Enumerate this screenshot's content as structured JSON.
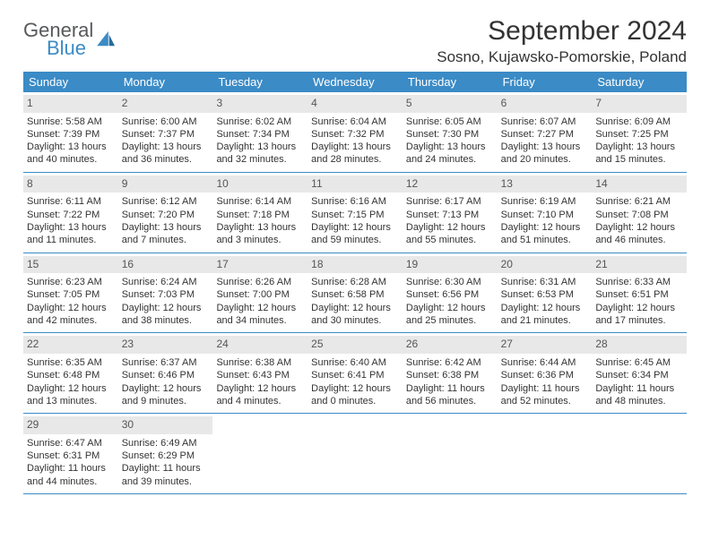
{
  "logo": {
    "general": "General",
    "blue": "Blue"
  },
  "title": "September 2024",
  "location": "Sosno, Kujawsko-Pomorskie, Poland",
  "colors": {
    "header_bg": "#3b8bc6",
    "daynum_bg": "#e8e8e8",
    "logo_gray": "#58595b",
    "logo_blue": "#3b8bc6"
  },
  "day_headers": [
    "Sunday",
    "Monday",
    "Tuesday",
    "Wednesday",
    "Thursday",
    "Friday",
    "Saturday"
  ],
  "weeks": [
    [
      {
        "n": "1",
        "sr": "Sunrise: 5:58 AM",
        "ss": "Sunset: 7:39 PM",
        "d1": "Daylight: 13 hours",
        "d2": "and 40 minutes."
      },
      {
        "n": "2",
        "sr": "Sunrise: 6:00 AM",
        "ss": "Sunset: 7:37 PM",
        "d1": "Daylight: 13 hours",
        "d2": "and 36 minutes."
      },
      {
        "n": "3",
        "sr": "Sunrise: 6:02 AM",
        "ss": "Sunset: 7:34 PM",
        "d1": "Daylight: 13 hours",
        "d2": "and 32 minutes."
      },
      {
        "n": "4",
        "sr": "Sunrise: 6:04 AM",
        "ss": "Sunset: 7:32 PM",
        "d1": "Daylight: 13 hours",
        "d2": "and 28 minutes."
      },
      {
        "n": "5",
        "sr": "Sunrise: 6:05 AM",
        "ss": "Sunset: 7:30 PM",
        "d1": "Daylight: 13 hours",
        "d2": "and 24 minutes."
      },
      {
        "n": "6",
        "sr": "Sunrise: 6:07 AM",
        "ss": "Sunset: 7:27 PM",
        "d1": "Daylight: 13 hours",
        "d2": "and 20 minutes."
      },
      {
        "n": "7",
        "sr": "Sunrise: 6:09 AM",
        "ss": "Sunset: 7:25 PM",
        "d1": "Daylight: 13 hours",
        "d2": "and 15 minutes."
      }
    ],
    [
      {
        "n": "8",
        "sr": "Sunrise: 6:11 AM",
        "ss": "Sunset: 7:22 PM",
        "d1": "Daylight: 13 hours",
        "d2": "and 11 minutes."
      },
      {
        "n": "9",
        "sr": "Sunrise: 6:12 AM",
        "ss": "Sunset: 7:20 PM",
        "d1": "Daylight: 13 hours",
        "d2": "and 7 minutes."
      },
      {
        "n": "10",
        "sr": "Sunrise: 6:14 AM",
        "ss": "Sunset: 7:18 PM",
        "d1": "Daylight: 13 hours",
        "d2": "and 3 minutes."
      },
      {
        "n": "11",
        "sr": "Sunrise: 6:16 AM",
        "ss": "Sunset: 7:15 PM",
        "d1": "Daylight: 12 hours",
        "d2": "and 59 minutes."
      },
      {
        "n": "12",
        "sr": "Sunrise: 6:17 AM",
        "ss": "Sunset: 7:13 PM",
        "d1": "Daylight: 12 hours",
        "d2": "and 55 minutes."
      },
      {
        "n": "13",
        "sr": "Sunrise: 6:19 AM",
        "ss": "Sunset: 7:10 PM",
        "d1": "Daylight: 12 hours",
        "d2": "and 51 minutes."
      },
      {
        "n": "14",
        "sr": "Sunrise: 6:21 AM",
        "ss": "Sunset: 7:08 PM",
        "d1": "Daylight: 12 hours",
        "d2": "and 46 minutes."
      }
    ],
    [
      {
        "n": "15",
        "sr": "Sunrise: 6:23 AM",
        "ss": "Sunset: 7:05 PM",
        "d1": "Daylight: 12 hours",
        "d2": "and 42 minutes."
      },
      {
        "n": "16",
        "sr": "Sunrise: 6:24 AM",
        "ss": "Sunset: 7:03 PM",
        "d1": "Daylight: 12 hours",
        "d2": "and 38 minutes."
      },
      {
        "n": "17",
        "sr": "Sunrise: 6:26 AM",
        "ss": "Sunset: 7:00 PM",
        "d1": "Daylight: 12 hours",
        "d2": "and 34 minutes."
      },
      {
        "n": "18",
        "sr": "Sunrise: 6:28 AM",
        "ss": "Sunset: 6:58 PM",
        "d1": "Daylight: 12 hours",
        "d2": "and 30 minutes."
      },
      {
        "n": "19",
        "sr": "Sunrise: 6:30 AM",
        "ss": "Sunset: 6:56 PM",
        "d1": "Daylight: 12 hours",
        "d2": "and 25 minutes."
      },
      {
        "n": "20",
        "sr": "Sunrise: 6:31 AM",
        "ss": "Sunset: 6:53 PM",
        "d1": "Daylight: 12 hours",
        "d2": "and 21 minutes."
      },
      {
        "n": "21",
        "sr": "Sunrise: 6:33 AM",
        "ss": "Sunset: 6:51 PM",
        "d1": "Daylight: 12 hours",
        "d2": "and 17 minutes."
      }
    ],
    [
      {
        "n": "22",
        "sr": "Sunrise: 6:35 AM",
        "ss": "Sunset: 6:48 PM",
        "d1": "Daylight: 12 hours",
        "d2": "and 13 minutes."
      },
      {
        "n": "23",
        "sr": "Sunrise: 6:37 AM",
        "ss": "Sunset: 6:46 PM",
        "d1": "Daylight: 12 hours",
        "d2": "and 9 minutes."
      },
      {
        "n": "24",
        "sr": "Sunrise: 6:38 AM",
        "ss": "Sunset: 6:43 PM",
        "d1": "Daylight: 12 hours",
        "d2": "and 4 minutes."
      },
      {
        "n": "25",
        "sr": "Sunrise: 6:40 AM",
        "ss": "Sunset: 6:41 PM",
        "d1": "Daylight: 12 hours",
        "d2": "and 0 minutes."
      },
      {
        "n": "26",
        "sr": "Sunrise: 6:42 AM",
        "ss": "Sunset: 6:38 PM",
        "d1": "Daylight: 11 hours",
        "d2": "and 56 minutes."
      },
      {
        "n": "27",
        "sr": "Sunrise: 6:44 AM",
        "ss": "Sunset: 6:36 PM",
        "d1": "Daylight: 11 hours",
        "d2": "and 52 minutes."
      },
      {
        "n": "28",
        "sr": "Sunrise: 6:45 AM",
        "ss": "Sunset: 6:34 PM",
        "d1": "Daylight: 11 hours",
        "d2": "and 48 minutes."
      }
    ],
    [
      {
        "n": "29",
        "sr": "Sunrise: 6:47 AM",
        "ss": "Sunset: 6:31 PM",
        "d1": "Daylight: 11 hours",
        "d2": "and 44 minutes."
      },
      {
        "n": "30",
        "sr": "Sunrise: 6:49 AM",
        "ss": "Sunset: 6:29 PM",
        "d1": "Daylight: 11 hours",
        "d2": "and 39 minutes."
      },
      null,
      null,
      null,
      null,
      null
    ]
  ]
}
